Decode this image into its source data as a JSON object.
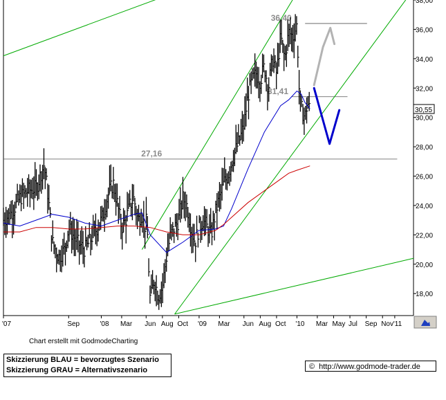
{
  "chart_data": {
    "type": "ohlc-line",
    "y_range": [
      16.5,
      38.0
    ],
    "y_ticks": [
      "38,00",
      "36,00",
      "34,00",
      "32,00",
      "30,00",
      "28,00",
      "26,00",
      "24,00",
      "22,00",
      "20,00",
      "18,00"
    ],
    "y_tick_values": [
      38,
      36,
      34,
      32,
      30,
      28,
      26,
      24,
      22,
      20,
      18
    ],
    "x_ticks": [
      "'07",
      "Sep",
      "'08",
      "Mar",
      "Jun",
      "Aug",
      "Oct",
      "'09",
      "Mar",
      "Jun",
      "Aug",
      "Oct",
      "'10",
      "Mar",
      "May",
      "Jul",
      "Sep",
      "Nov",
      "'11"
    ],
    "x_tick_months": [
      0,
      8,
      12,
      14.5,
      17.5,
      19.5,
      21.5,
      24,
      26.5,
      29.5,
      31.5,
      33.5,
      36,
      38.5,
      40.5,
      42.5,
      44.5,
      46.5,
      48
    ],
    "x_range_months": [
      0,
      50.3
    ],
    "current_price_label": "30,55",
    "current_price": 30.55,
    "levels": [
      {
        "label": "36,40",
        "value": 36.4,
        "color": "#8c8c8c"
      },
      {
        "label": "31,41",
        "value": 31.41,
        "color": "#8c8c8c"
      },
      {
        "label": "27,16",
        "value": 27.16,
        "color": "#8c8c8c"
      }
    ],
    "close_anchors": [
      [
        0,
        23.0
      ],
      [
        1,
        23.5
      ],
      [
        2,
        24.5
      ],
      [
        3,
        25.0
      ],
      [
        4,
        25.2
      ],
      [
        4.5,
        26.0
      ],
      [
        5,
        26.8
      ],
      [
        5.5,
        24.5
      ],
      [
        6,
        21.5
      ],
      [
        6.8,
        20.5
      ],
      [
        7.5,
        21.0
      ],
      [
        8,
        22.5
      ],
      [
        9,
        21.5
      ],
      [
        10,
        21.0
      ],
      [
        11,
        22.0
      ],
      [
        12,
        23.0
      ],
      [
        12.5,
        24.0
      ],
      [
        13,
        25.0
      ],
      [
        13.5,
        25.5
      ],
      [
        14,
        24.0
      ],
      [
        14.5,
        22.5
      ],
      [
        15,
        23.0
      ],
      [
        15.5,
        24.0
      ],
      [
        16,
        24.5
      ],
      [
        16.5,
        23.0
      ],
      [
        17,
        23.5
      ],
      [
        17.3,
        22.5
      ],
      [
        17.6,
        23.0
      ],
      [
        17.8,
        20.0
      ],
      [
        18,
        17.5
      ],
      [
        18.5,
        19.0
      ],
      [
        19,
        17.8
      ],
      [
        19.5,
        18.5
      ],
      [
        20,
        20.5
      ],
      [
        20.5,
        22.0
      ],
      [
        21,
        22.5
      ],
      [
        21.5,
        23.0
      ],
      [
        22,
        24.5
      ],
      [
        22.5,
        24.0
      ],
      [
        23,
        22.5
      ],
      [
        23.5,
        21.5
      ],
      [
        24,
        22.5
      ],
      [
        24.5,
        23.0
      ],
      [
        25,
        22.5
      ],
      [
        25.5,
        22.0
      ],
      [
        26,
        23.5
      ],
      [
        26.5,
        24.5
      ],
      [
        27,
        25.5
      ],
      [
        27.5,
        26.0
      ],
      [
        28,
        27.0
      ],
      [
        28.5,
        27.8
      ],
      [
        29,
        28.5
      ],
      [
        29.5,
        29.5
      ],
      [
        30,
        31.5
      ],
      [
        30.5,
        32.5
      ],
      [
        31,
        33.0
      ],
      [
        31.5,
        32.5
      ],
      [
        32,
        33.5
      ],
      [
        32.5,
        32.0
      ],
      [
        33,
        34.0
      ],
      [
        33.5,
        33.0
      ],
      [
        34,
        35.5
      ],
      [
        34.5,
        34.0
      ],
      [
        35,
        35.8
      ],
      [
        35.5,
        35.5
      ],
      [
        36,
        36.3
      ],
      [
        36.3,
        31.5
      ],
      [
        36.6,
        30.5
      ],
      [
        37,
        30.0
      ],
      [
        37.3,
        31.0
      ],
      [
        37.6,
        30.5
      ]
    ],
    "series": [
      {
        "name": "",
        "color": "#0000cc",
        "points": [
          [
            0,
            22.8
          ],
          [
            2,
            22.6
          ],
          [
            4,
            23.0
          ],
          [
            6,
            23.4
          ],
          [
            8,
            23.2
          ],
          [
            10,
            22.8
          ],
          [
            12,
            22.6
          ],
          [
            14,
            23.0
          ],
          [
            16,
            23.4
          ],
          [
            17,
            23.5
          ],
          [
            18,
            22.0
          ],
          [
            20,
            20.8
          ],
          [
            22,
            21.5
          ],
          [
            24,
            22.3
          ],
          [
            26,
            22.4
          ],
          [
            27,
            22.6
          ],
          [
            28,
            23.8
          ],
          [
            30,
            26.5
          ],
          [
            32,
            29.0
          ],
          [
            34,
            30.8
          ],
          [
            35,
            31.2
          ],
          [
            36,
            31.8
          ],
          [
            36.5,
            31.6
          ],
          [
            37,
            31.0
          ],
          [
            37.6,
            30.6
          ]
        ]
      },
      {
        "name": "",
        "color": "#cc0000",
        "points": [
          [
            0,
            22.2
          ],
          [
            2,
            22.2
          ],
          [
            4,
            22.5
          ],
          [
            6,
            22.5
          ],
          [
            8,
            22.4
          ],
          [
            10,
            22.4
          ],
          [
            12,
            22.5
          ],
          [
            14,
            22.6
          ],
          [
            16,
            22.6
          ],
          [
            18,
            22.5
          ],
          [
            20,
            22.2
          ],
          [
            22,
            22.0
          ],
          [
            24,
            22.0
          ],
          [
            26,
            22.3
          ],
          [
            27,
            22.7
          ],
          [
            28,
            23.2
          ],
          [
            30,
            24.2
          ],
          [
            32,
            25.0
          ],
          [
            34,
            25.8
          ],
          [
            35,
            26.2
          ],
          [
            36,
            26.4
          ],
          [
            37.6,
            26.7
          ]
        ]
      }
    ],
    "trendlines": [
      {
        "color": "#00aa00",
        "points": [
          [
            0,
            34.2
          ],
          [
            21,
            38.5
          ]
        ]
      },
      {
        "color": "#00aa00",
        "points": [
          [
            21,
            16.6
          ],
          [
            50,
            38.5
          ]
        ]
      },
      {
        "color": "#00aa00",
        "points": [
          [
            17,
            21.0
          ],
          [
            36,
            38.5
          ]
        ]
      },
      {
        "color": "#00aa00",
        "points": [
          [
            21,
            16.6
          ],
          [
            50.3,
            20.4
          ]
        ]
      }
    ],
    "scenarios": [
      {
        "name": "blau",
        "color": "#0000cc",
        "points": [
          [
            38.1,
            32.0
          ],
          [
            38.8,
            30.6
          ],
          [
            40.0,
            28.2
          ],
          [
            41.2,
            30.5
          ]
        ]
      },
      {
        "name": "grau",
        "color": "#b3b3b3",
        "points": [
          [
            38.1,
            32.2
          ],
          [
            39.2,
            34.8
          ],
          [
            40.1,
            36.1
          ],
          [
            40.6,
            35.0
          ]
        ]
      }
    ]
  },
  "footer": {
    "credit": "Chart erstellt mit GodmodeCharting",
    "legend_line1": "Skizzierung BLAU = bevorzugtes Szenario",
    "legend_line2": "Skizzierung GRAU = Alternativszenario",
    "source_symbol": "©",
    "source_url": "http://www.godmode-trader.de"
  }
}
